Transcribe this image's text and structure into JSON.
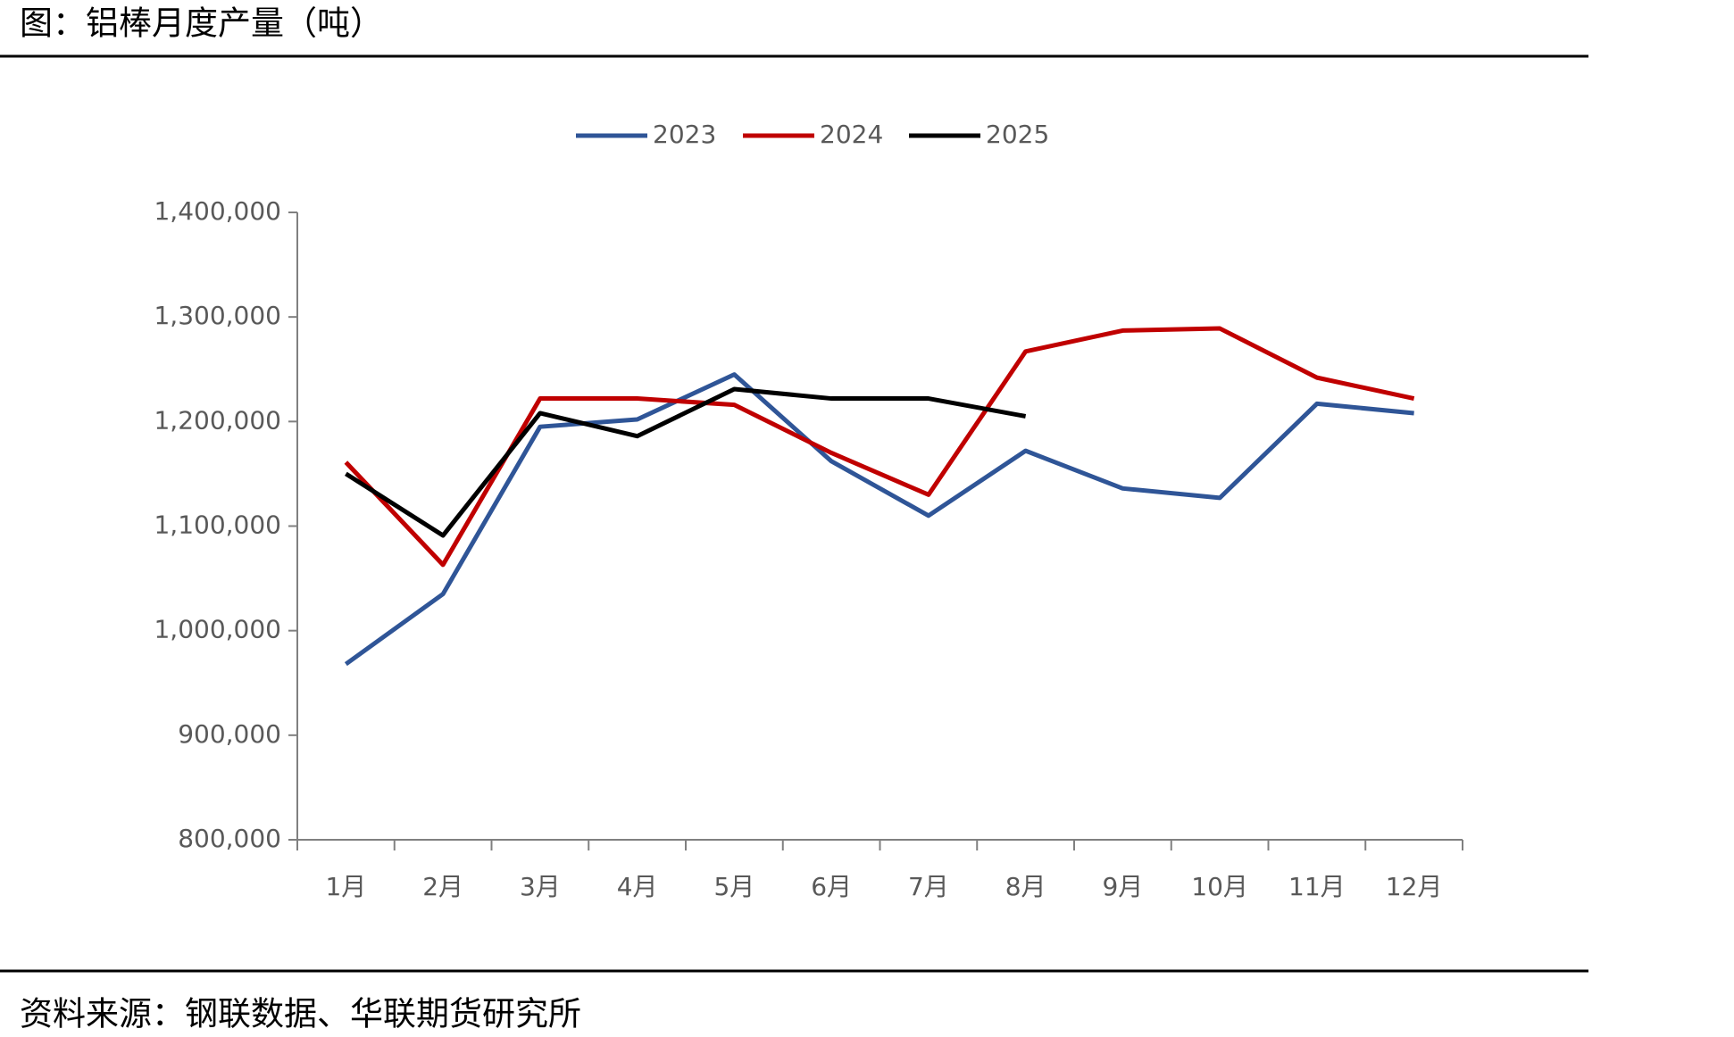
{
  "chart_data": {
    "type": "line",
    "title": "图：铝棒月度产量（吨）",
    "source": "资料来源：钢联数据、华联期货研究所",
    "categories": [
      "1月",
      "2月",
      "3月",
      "4月",
      "5月",
      "6月",
      "7月",
      "8月",
      "9月",
      "10月",
      "11月",
      "12月"
    ],
    "series": [
      {
        "name": "2023",
        "color": "#2f5597",
        "values": [
          968000,
          1035000,
          1195000,
          1202000,
          1245000,
          1162000,
          1110000,
          1172000,
          1136000,
          1127000,
          1217000,
          1208000
        ]
      },
      {
        "name": "2024",
        "color": "#c00000",
        "values": [
          1161000,
          1063000,
          1222000,
          1222000,
          1216000,
          1170000,
          1130000,
          1267000,
          1287000,
          1289000,
          1242000,
          1222000
        ]
      },
      {
        "name": "2025",
        "color": "#000000",
        "values": [
          1150000,
          1091000,
          1208000,
          1186000,
          1231000,
          1222000,
          1222000,
          1205000,
          null,
          null,
          null,
          null
        ]
      }
    ],
    "ylim": [
      800000,
      1400000
    ],
    "yticks": [
      {
        "value": 800000,
        "label": "800,000"
      },
      {
        "value": 900000,
        "label": "900,000"
      },
      {
        "value": 1000000,
        "label": "1,000,000"
      },
      {
        "value": 1100000,
        "label": "1,100,000"
      },
      {
        "value": 1200000,
        "label": "1,200,000"
      },
      {
        "value": 1300000,
        "label": "1,300,000"
      },
      {
        "value": 1400000,
        "label": "1,400,000"
      }
    ],
    "legend": "top"
  }
}
